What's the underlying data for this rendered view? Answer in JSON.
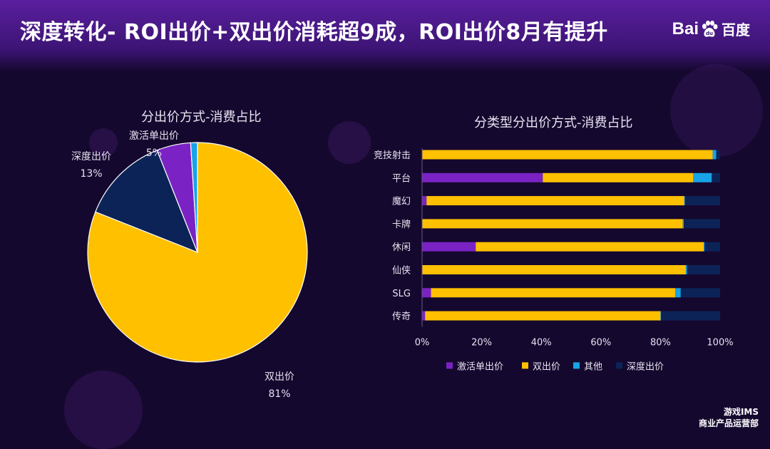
{
  "header": {
    "title": "深度转化- ROI出价+双出价消耗超9成，ROI出价8月有提升",
    "logo_text_left": "Bai",
    "logo_text_right": "百度"
  },
  "footer": {
    "line1": "游戏IMS",
    "line2": "商业产品运营部"
  },
  "colors": {
    "bg": "#15082e",
    "accent": "#5a1f9e",
    "激活单出价": "#7a22c4",
    "双出价": "#ffc000",
    "其他": "#17a3e6",
    "深度出价": "#0c2357"
  },
  "chart_data": [
    {
      "type": "pie",
      "title": "分出价方式-消费占比",
      "slices": [
        {
          "name": "双出价",
          "value": 81,
          "label": "81%"
        },
        {
          "name": "深度出价",
          "value": 13,
          "label": "13%"
        },
        {
          "name": "激活单出价",
          "value": 5,
          "label": "5%"
        },
        {
          "name": "其他",
          "value": 1,
          "label": ""
        }
      ]
    },
    {
      "type": "bar",
      "orientation": "horizontal",
      "stacked": "percent",
      "title": "分类型分出价方式-消费占比",
      "categories": [
        "竞技射击",
        "平台",
        "魔幻",
        "卡牌",
        "休闲",
        "仙侠",
        "SLG",
        "传奇"
      ],
      "series": [
        {
          "name": "激活单出价",
          "values": [
            0,
            40.5,
            1.5,
            0,
            18,
            0,
            3,
            1
          ]
        },
        {
          "name": "双出价",
          "values": [
            97.5,
            50.5,
            86.5,
            87.5,
            76.5,
            88.5,
            82,
            79
          ]
        },
        {
          "name": "其他",
          "values": [
            1.2,
            6.2,
            0.2,
            0.3,
            0.3,
            0.4,
            1.8,
            0.2
          ]
        },
        {
          "name": "深度出价",
          "values": [
            1.3,
            2.8,
            11.8,
            12.2,
            5.2,
            11.1,
            13.2,
            19.8
          ]
        }
      ],
      "xlim": [
        0,
        100
      ],
      "xticks": [
        "0%",
        "20%",
        "40%",
        "60%",
        "80%",
        "100%"
      ],
      "legend_position": "bottom",
      "grid": false
    }
  ]
}
